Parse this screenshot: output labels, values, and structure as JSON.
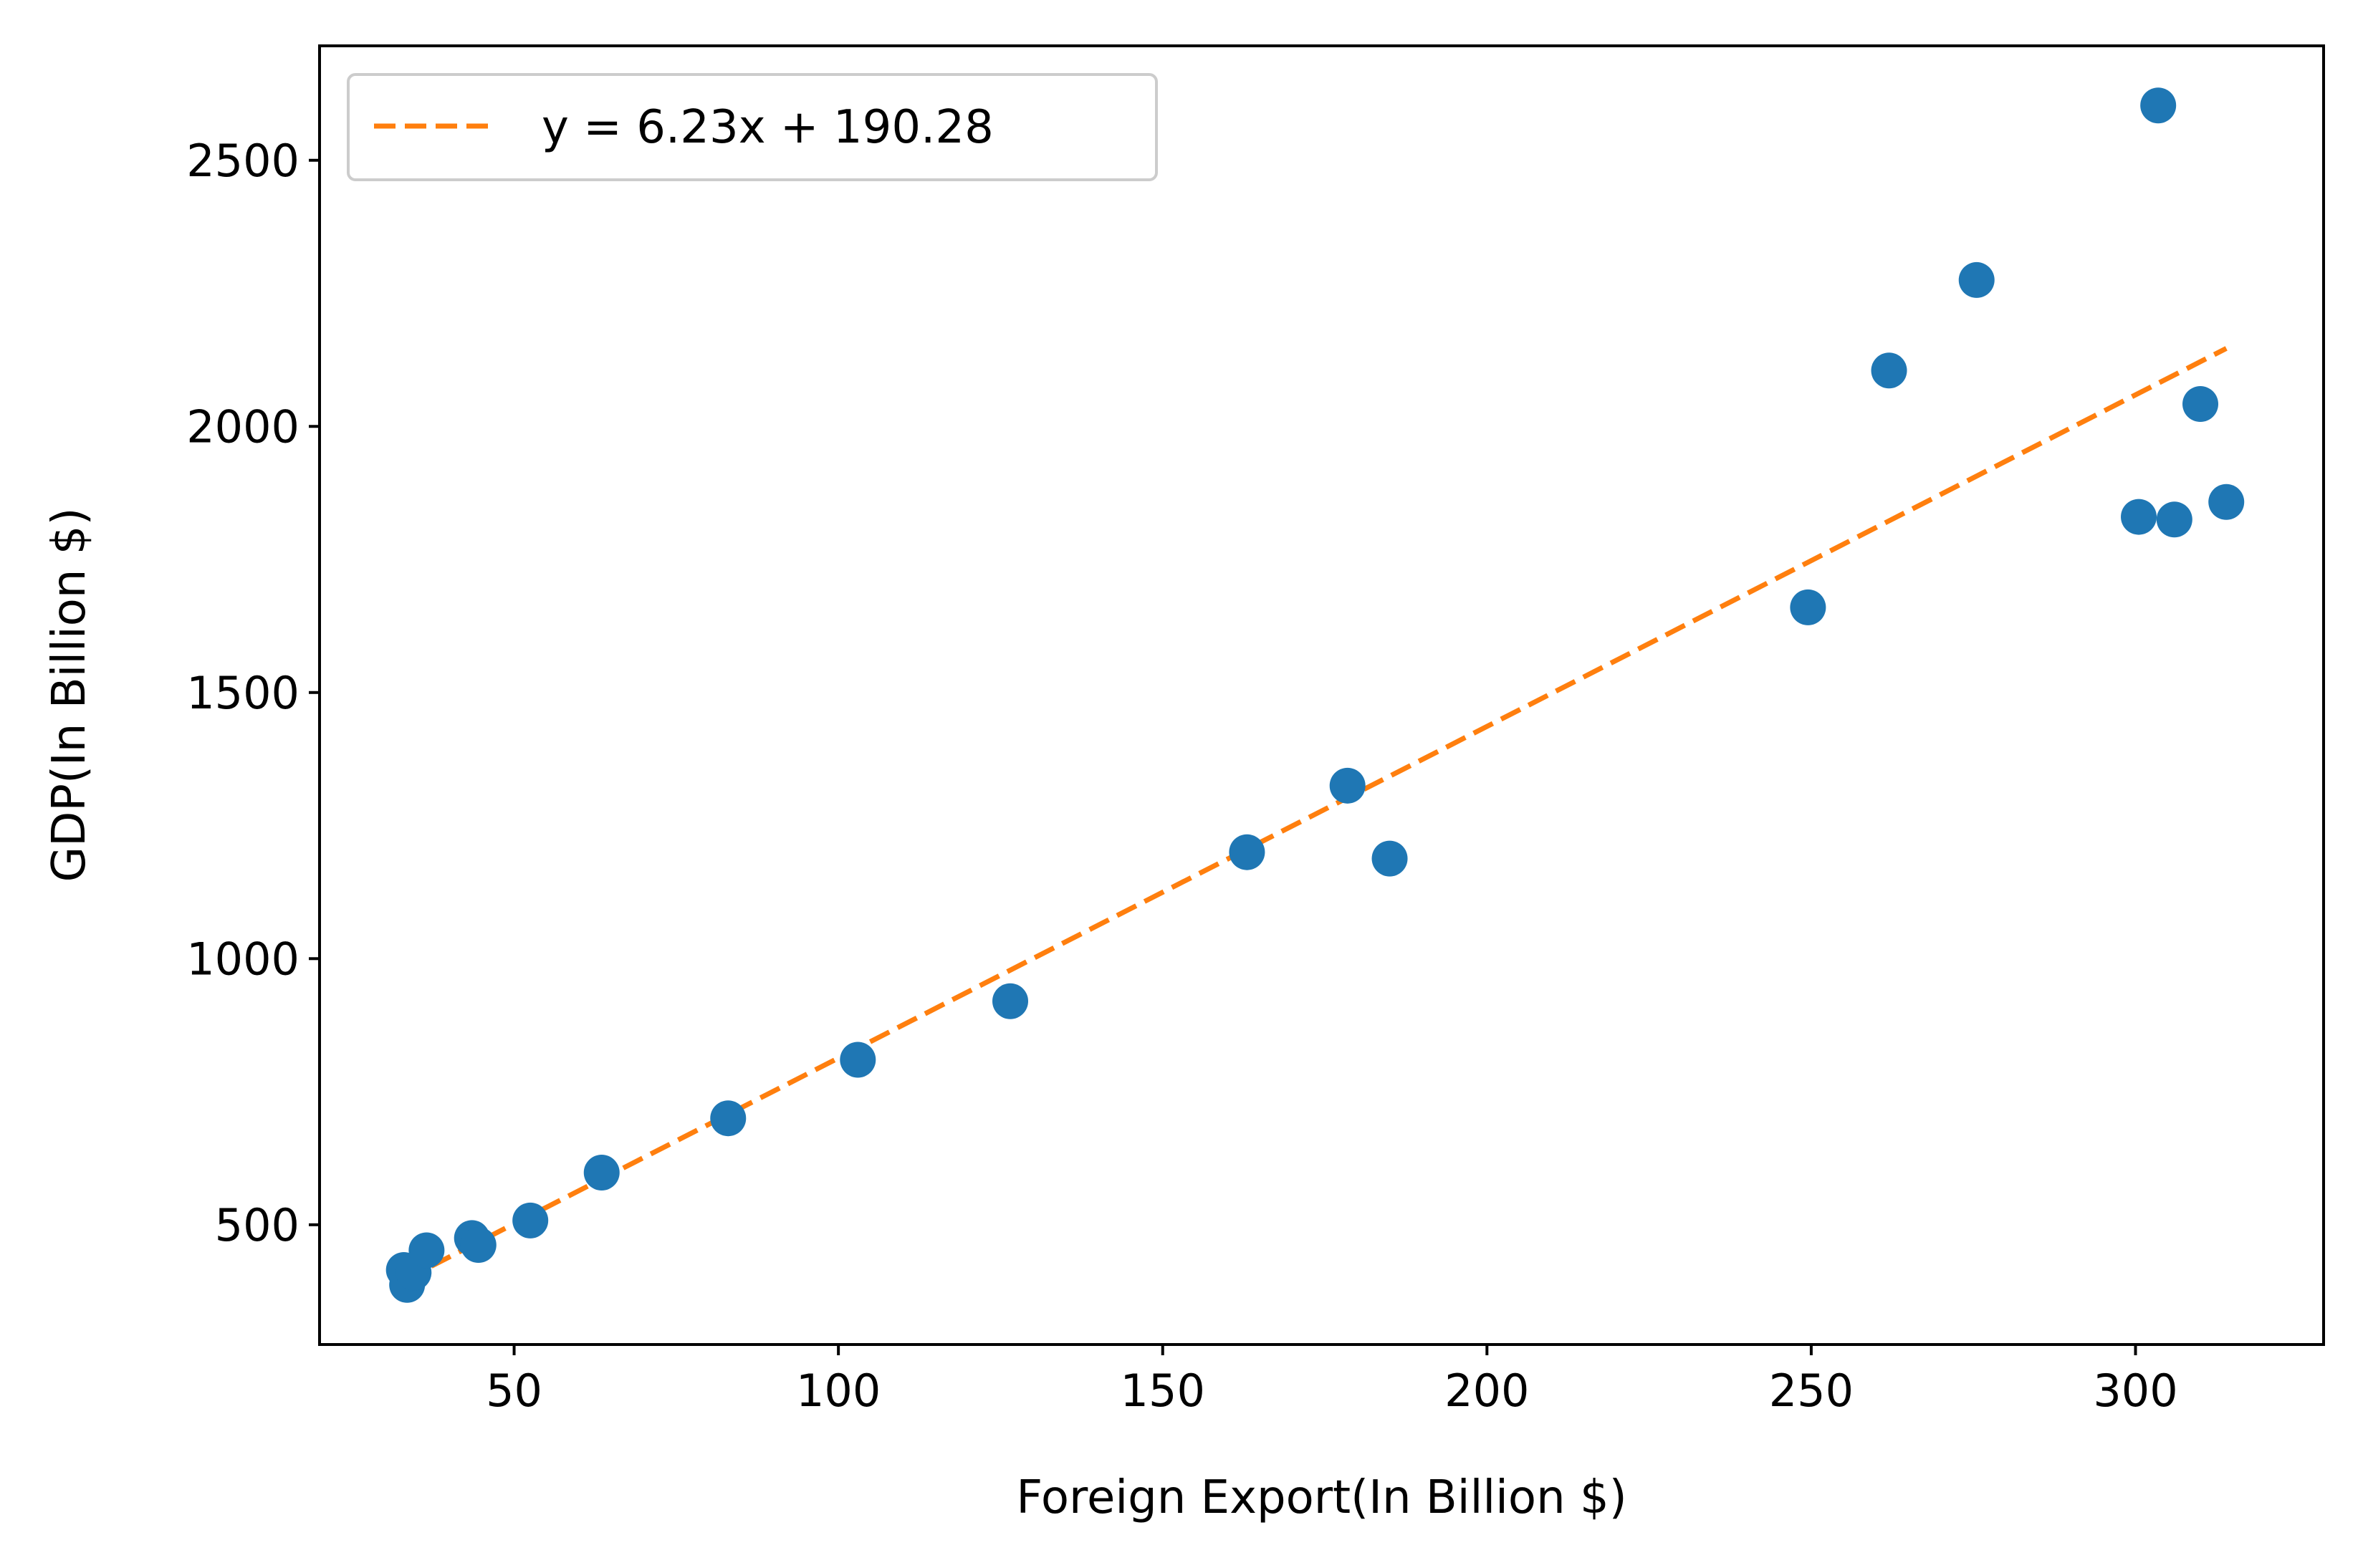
{
  "chart_data": {
    "type": "scatter",
    "title": "",
    "xlabel": "Foreign Export(In Billion $)",
    "ylabel": "GDP(In Billion $)",
    "xlim": [
      20,
      329
    ],
    "ylim": [
      275,
      2715
    ],
    "x_ticks": [
      50,
      100,
      150,
      200,
      250,
      300
    ],
    "x_tick_labels": [
      "50",
      "100",
      "150",
      "200",
      "250",
      "300"
    ],
    "y_ticks": [
      500,
      1000,
      1500,
      2000,
      2500
    ],
    "y_tick_labels": [
      "500",
      "1000",
      "1500",
      "2000",
      "2500"
    ],
    "grid": false,
    "legend": {
      "placement": "upper-left",
      "entries": [
        "y = 6.23x + 190.28"
      ]
    },
    "series": [
      {
        "kind": "scatter",
        "color": "#1f77b4",
        "points": [
          {
            "x": 33.0,
            "y": 415
          },
          {
            "x": 33.5,
            "y": 387
          },
          {
            "x": 34.5,
            "y": 410
          },
          {
            "x": 36.5,
            "y": 452
          },
          {
            "x": 43.5,
            "y": 475
          },
          {
            "x": 44.5,
            "y": 462
          },
          {
            "x": 52.5,
            "y": 508
          },
          {
            "x": 63.5,
            "y": 598
          },
          {
            "x": 83.0,
            "y": 700
          },
          {
            "x": 103.0,
            "y": 810
          },
          {
            "x": 126.5,
            "y": 920
          },
          {
            "x": 163.0,
            "y": 1200
          },
          {
            "x": 178.5,
            "y": 1325
          },
          {
            "x": 185.0,
            "y": 1188
          },
          {
            "x": 249.5,
            "y": 1660
          },
          {
            "x": 262.0,
            "y": 2105
          },
          {
            "x": 275.5,
            "y": 2275
          },
          {
            "x": 300.5,
            "y": 1830
          },
          {
            "x": 303.5,
            "y": 2603
          },
          {
            "x": 306.0,
            "y": 1825
          },
          {
            "x": 310.0,
            "y": 2042
          },
          {
            "x": 314.0,
            "y": 1858
          }
        ]
      },
      {
        "kind": "line",
        "name": "y = 6.23x + 190.28",
        "color": "#ff7f0e",
        "dash": "dashed",
        "slope": 6.23,
        "intercept": 190.28,
        "x_range": [
          33.0,
          314.0
        ]
      }
    ]
  }
}
